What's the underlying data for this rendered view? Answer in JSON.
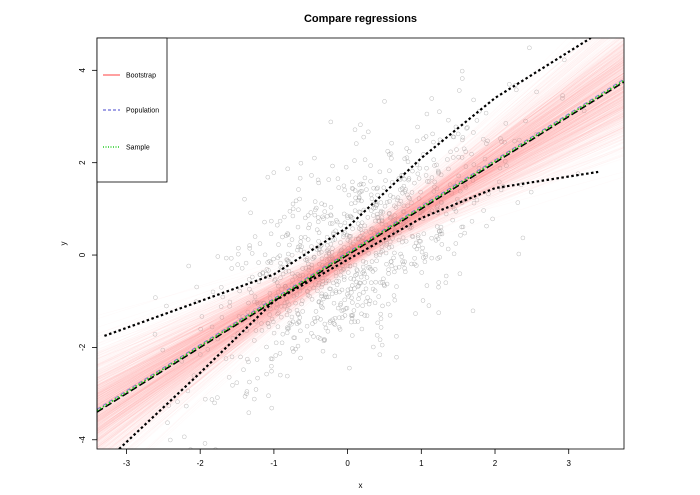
{
  "chart_data": {
    "type": "scatter",
    "title": "Compare regressions",
    "xlabel": "x",
    "ylabel": "y",
    "xlim": [
      -3.4,
      3.75
    ],
    "ylim": [
      -4.2,
      4.7
    ],
    "xticks": [
      -3,
      -2,
      -1,
      0,
      1,
      2,
      3
    ],
    "yticks": [
      -4,
      -2,
      0,
      2,
      4
    ],
    "grid": false,
    "legend_position": "top-left",
    "legend": [
      {
        "label": "Bootstrap",
        "color": "#ff8080",
        "style": "solid"
      },
      {
        "label": "Population",
        "color": "#6a6ad8",
        "style": "dashed"
      },
      {
        "label": "Sample",
        "color": "#22cc22",
        "style": "dotted"
      }
    ],
    "colors": {
      "points": "#999999",
      "bootstrap": "#ff9999",
      "population": "#000000",
      "population_overlay": "#6a6ad8",
      "sample": "#22cc22",
      "confidence_band": "#000000"
    },
    "point_count": 1000,
    "bootstrap_count": 1000,
    "lines": {
      "population": {
        "intercept": 0,
        "slope": 1
      },
      "sample": {
        "intercept": 0.03,
        "slope": 1.0
      }
    },
    "confidence_band": {
      "upper": [
        [
          -3.3,
          -1.75
        ],
        [
          -1,
          -0.42
        ],
        [
          0,
          0.6
        ],
        [
          1,
          2.1
        ],
        [
          2,
          3.4
        ],
        [
          3.3,
          4.7
        ]
      ],
      "lower": [
        [
          -3.1,
          -4.2
        ],
        [
          -2,
          -2.55
        ],
        [
          -1,
          -1.0
        ],
        [
          0,
          -0.1
        ],
        [
          1,
          0.8
        ],
        [
          2,
          1.45
        ],
        [
          3.4,
          1.8
        ]
      ]
    }
  }
}
